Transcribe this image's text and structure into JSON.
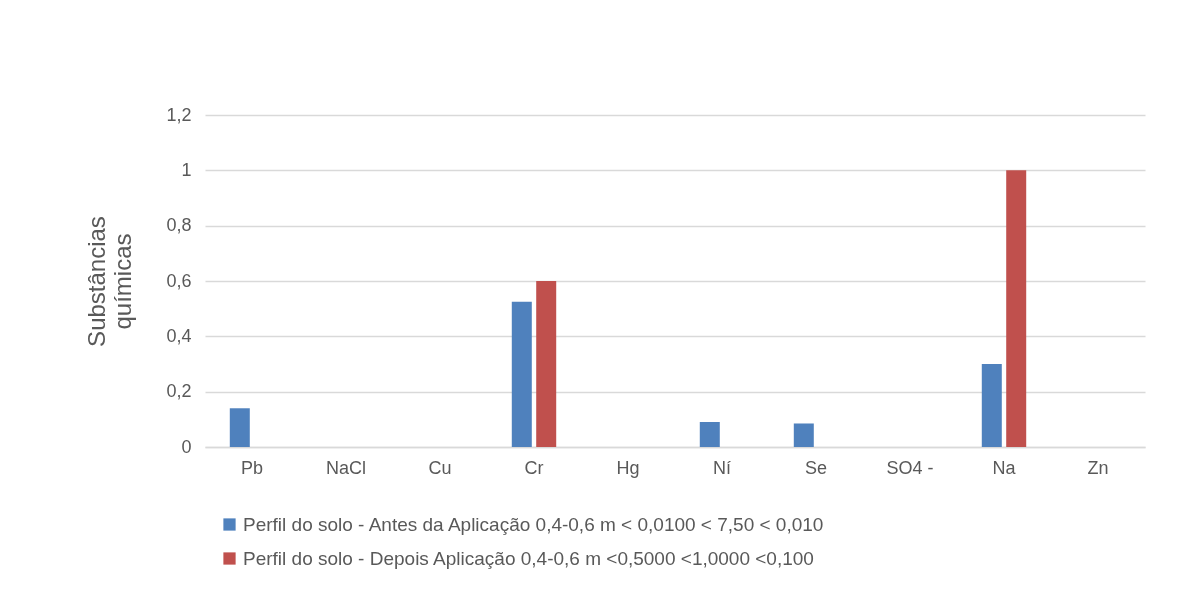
{
  "chart_data": {
    "type": "bar",
    "ylabel": "Substâncias químicas",
    "categories": [
      "Pb",
      "NaCl",
      "Cu",
      "Cr",
      "Hg",
      "Ní",
      "Se",
      "SO4 -",
      "Na",
      "Zn"
    ],
    "series": [
      {
        "name": "Perfil do solo - Antes da Aplicação  0,4-0,6 m  < 0,0100 < 7,50 < 0,010",
        "color": "#4f81bd",
        "values": [
          0.14,
          null,
          null,
          0.525,
          null,
          0.09,
          0.085,
          null,
          0.3,
          null
        ]
      },
      {
        "name": "Perfil do solo - Depois Aplicação  0,4-0,6 m <0,5000 <1,0000 <0,100",
        "color": "#c0504d",
        "values": [
          null,
          null,
          null,
          0.6,
          null,
          null,
          null,
          null,
          1.0,
          null
        ]
      }
    ],
    "ylim": [
      0,
      1.2
    ],
    "yticks": [
      0,
      {
        "value": 0.2,
        "label": "0,2"
      },
      {
        "value": 0.4,
        "label": "0,4"
      },
      {
        "value": 0.6,
        "label": "0,6"
      },
      {
        "value": 0.8,
        "label": "0,8"
      },
      1,
      {
        "value": 1.2,
        "label": "1,2"
      }
    ],
    "grid": "y",
    "legend": "bottom"
  }
}
